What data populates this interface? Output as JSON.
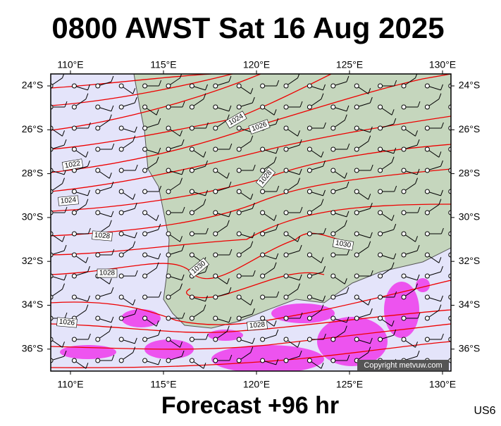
{
  "header": {
    "title": "0800 AWST Sat 16 Aug 2025"
  },
  "map": {
    "lon_labels": [
      "110°E",
      "115°E",
      "120°E",
      "125°E",
      "130°E"
    ],
    "lat_labels": [
      "24°S",
      "26°S",
      "28°S",
      "30°S",
      "32°S",
      "34°S",
      "36°S"
    ],
    "isobar_labels": [
      "1024",
      "1026",
      "1022",
      "1024",
      "1028",
      "1028",
      "1028",
      "1030",
      "1030",
      "1028",
      "1026"
    ],
    "copyright": "Copyright metvuw.com"
  },
  "footer": {
    "forecast": "Forecast +96 hr",
    "code": "US6"
  }
}
